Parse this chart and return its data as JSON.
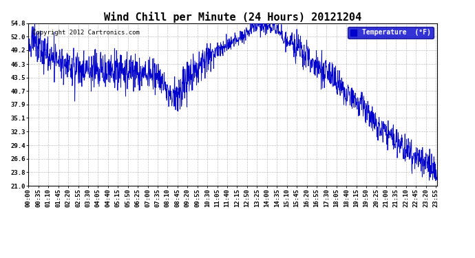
{
  "title": "Wind Chill per Minute (24 Hours) 20121204",
  "copyright": "Copyright 2012 Cartronics.com",
  "legend_label": "Temperature  (°F)",
  "yticks": [
    21.0,
    23.8,
    26.6,
    29.4,
    32.3,
    35.1,
    37.9,
    40.7,
    43.5,
    46.3,
    49.2,
    52.0,
    54.8
  ],
  "ylim": [
    21.0,
    54.8
  ],
  "total_minutes": 1440,
  "xtick_labels": [
    "00:00",
    "00:35",
    "01:10",
    "01:45",
    "02:20",
    "02:55",
    "03:30",
    "04:05",
    "04:40",
    "05:15",
    "05:50",
    "06:25",
    "07:00",
    "07:35",
    "08:10",
    "08:45",
    "09:20",
    "09:55",
    "10:30",
    "11:05",
    "11:40",
    "12:15",
    "12:50",
    "13:25",
    "14:00",
    "14:35",
    "15:10",
    "15:45",
    "16:20",
    "16:55",
    "17:30",
    "18:05",
    "18:40",
    "19:15",
    "19:50",
    "20:25",
    "21:00",
    "21:35",
    "22:10",
    "22:45",
    "23:20",
    "23:55"
  ],
  "line_color": "#0000cc",
  "background_color": "#ffffff",
  "grid_color": "#b0b0b0",
  "title_fontsize": 11,
  "tick_fontsize": 6.5,
  "legend_bg": "#0000cc",
  "legend_fg": "#ffffff",
  "curve_knots_x": [
    0.0,
    0.02,
    0.045,
    0.075,
    0.1,
    0.13,
    0.16,
    0.185,
    0.21,
    0.24,
    0.265,
    0.295,
    0.32,
    0.34,
    0.36,
    0.38,
    0.4,
    0.42,
    0.45,
    0.48,
    0.51,
    0.54,
    0.56,
    0.58,
    0.6,
    0.62,
    0.64,
    0.66,
    0.69,
    0.72,
    0.74,
    0.76,
    0.78,
    0.8,
    0.82,
    0.84,
    0.86,
    0.88,
    0.9,
    0.92,
    0.94,
    0.96,
    0.975,
    0.99,
    1.0
  ],
  "curve_knots_y": [
    51.5,
    50.5,
    48.5,
    46.5,
    45.5,
    45.0,
    45.2,
    45.0,
    44.8,
    44.8,
    44.5,
    44.0,
    43.5,
    40.5,
    39.5,
    42.0,
    44.5,
    46.5,
    48.5,
    50.0,
    51.5,
    53.0,
    54.2,
    54.5,
    53.8,
    52.5,
    51.0,
    49.5,
    47.0,
    45.0,
    43.5,
    42.0,
    40.5,
    39.0,
    37.0,
    35.0,
    33.0,
    31.5,
    30.0,
    28.5,
    27.5,
    26.5,
    25.5,
    24.0,
    23.0
  ],
  "noise_seed": 12345,
  "noise_amplitude": 2.2
}
